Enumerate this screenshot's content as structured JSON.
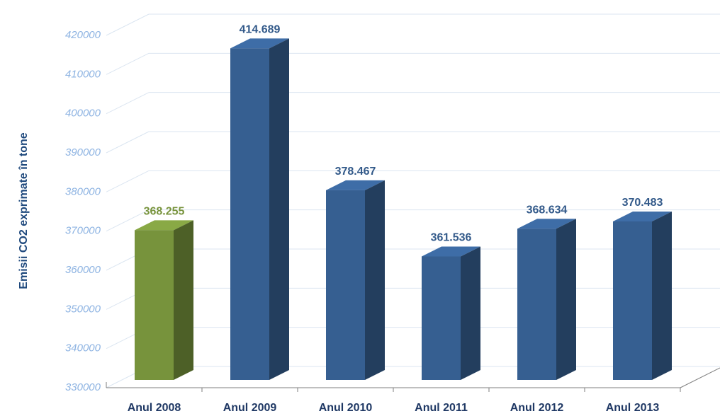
{
  "chart_data": {
    "type": "bar3d",
    "y_axis_label": "Emisii CO2  exprimate în tone",
    "categories": [
      "Anul 2008",
      "Anul 2009",
      "Anul 2010",
      "Anul 2011",
      "Anul 2012",
      "Anul 2013"
    ],
    "values": [
      368255,
      414689,
      378467,
      361536,
      368634,
      370483
    ],
    "value_labels": [
      "368.255",
      "414.689",
      "378.467",
      "361.536",
      "368.634",
      "370.483"
    ],
    "colors": [
      "#77933c",
      "#365f91",
      "#365f91",
      "#365f91",
      "#365f91",
      "#365f91"
    ],
    "ylim": [
      330000,
      420000
    ],
    "yticks": [
      330000,
      340000,
      350000,
      360000,
      370000,
      380000,
      390000,
      400000,
      410000,
      420000
    ],
    "grid": true
  }
}
